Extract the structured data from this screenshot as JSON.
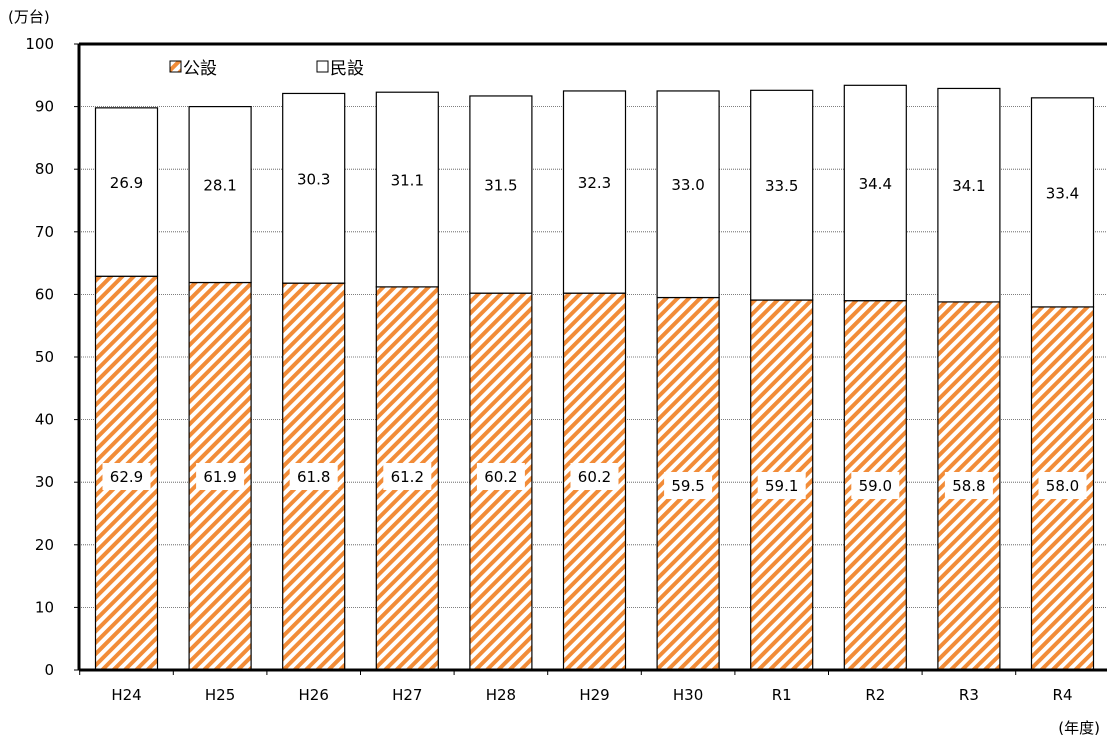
{
  "chart_data": {
    "type": "bar",
    "stacked": true,
    "y_unit": "(万台)",
    "x_unit": "(年度)",
    "categories": [
      "H24",
      "H25",
      "H26",
      "H27",
      "H28",
      "H29",
      "H30",
      "R1",
      "R2",
      "R3",
      "R4"
    ],
    "series": [
      {
        "name": "公設",
        "values": [
          62.9,
          61.9,
          61.8,
          61.2,
          60.2,
          60.2,
          59.5,
          59.1,
          59.0,
          58.8,
          58.0
        ],
        "fill": "#f4a460",
        "pattern": "diagonal-hatch"
      },
      {
        "name": "民設",
        "values": [
          26.9,
          28.1,
          30.3,
          31.1,
          31.5,
          32.3,
          33.0,
          33.5,
          34.4,
          34.1,
          33.4
        ],
        "fill": "#ffffff"
      }
    ],
    "ylim": [
      0,
      100
    ],
    "yticks": [
      0,
      10,
      20,
      30,
      40,
      50,
      60,
      70,
      80,
      90,
      100
    ],
    "grid": true,
    "legend_position": "top-left"
  }
}
